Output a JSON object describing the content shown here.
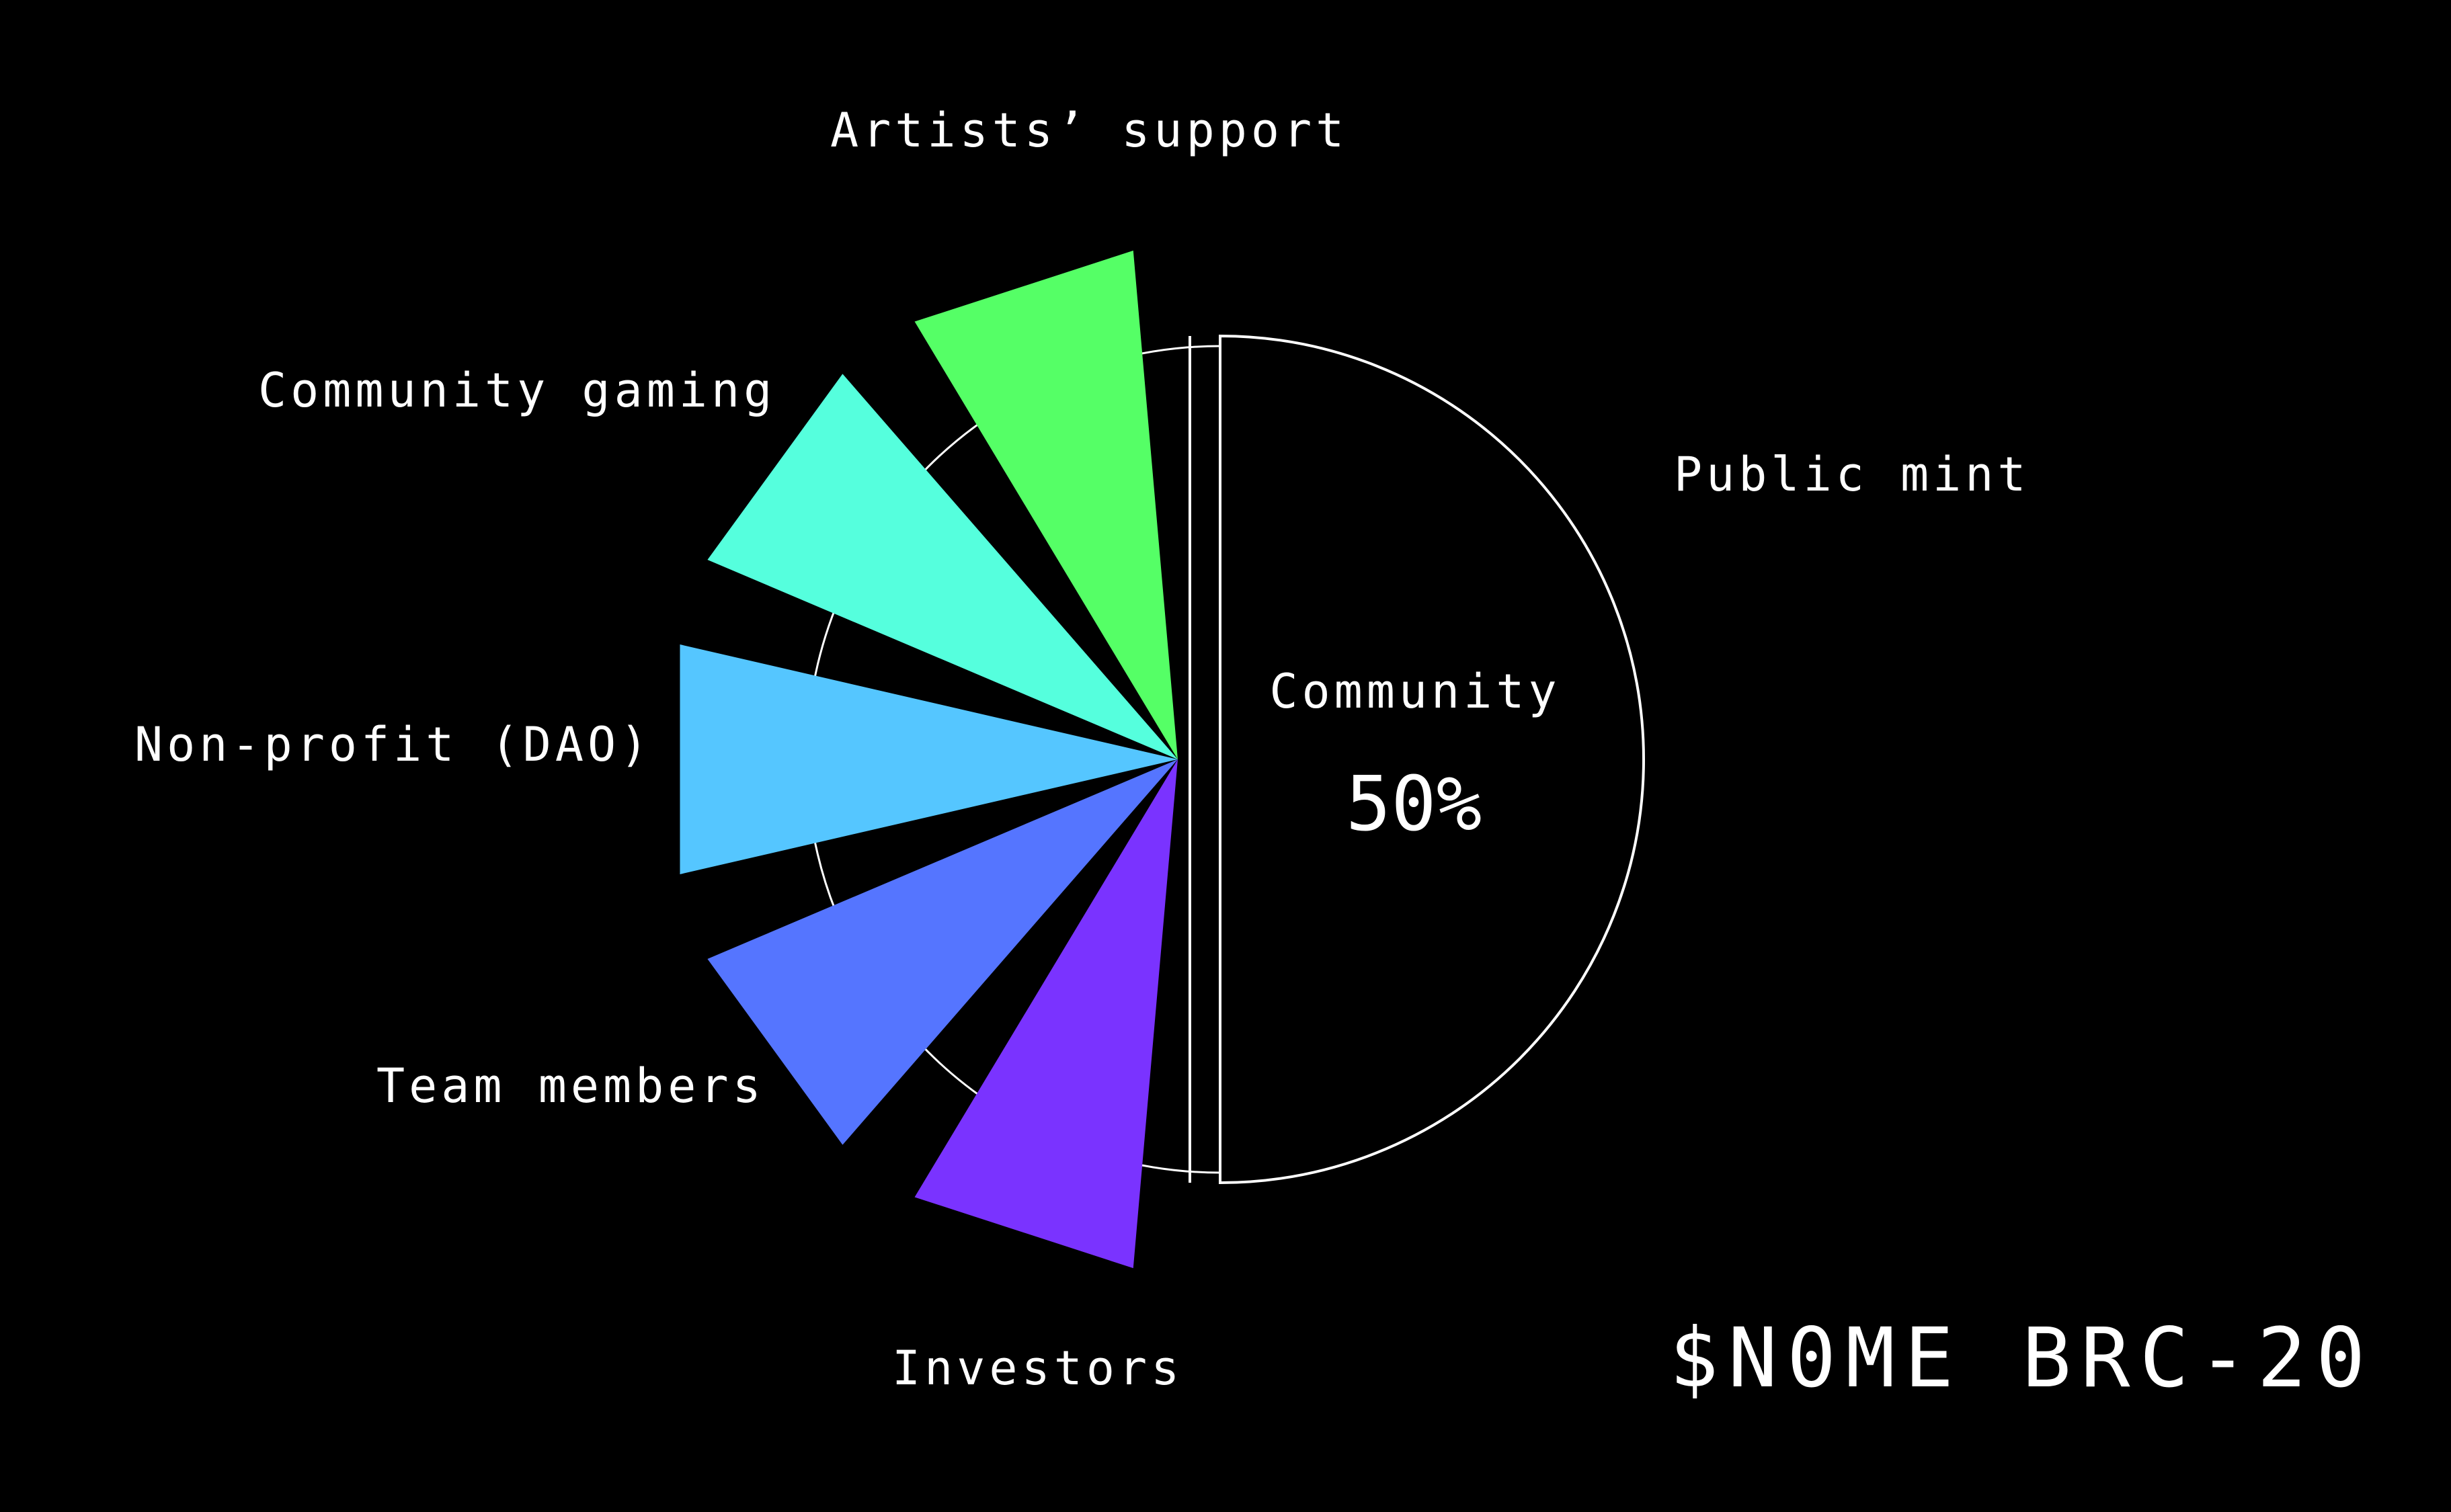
{
  "brand": {
    "text": "$N0ME BRC-20"
  },
  "chart_data": {
    "type": "pie",
    "title": "",
    "center_label": {
      "name": "Community",
      "value": "50%"
    },
    "slices": [
      {
        "name": "Public mint",
        "value": 50,
        "color": "#000000",
        "outline": "#ffffff"
      },
      {
        "name": "Artists’ support",
        "value": 10,
        "color": "#7a33ff"
      },
      {
        "name": "Community gaming",
        "value": 10,
        "color": "#5575ff"
      },
      {
        "name": "Non-profit (DAO)",
        "value": 10,
        "color": "#55c6ff"
      },
      {
        "name": "Team members",
        "value": 10,
        "color": "#55ffdd"
      },
      {
        "name": "Investors",
        "value": 10,
        "color": "#55ff66"
      }
    ],
    "legend": "none",
    "grid": false
  }
}
